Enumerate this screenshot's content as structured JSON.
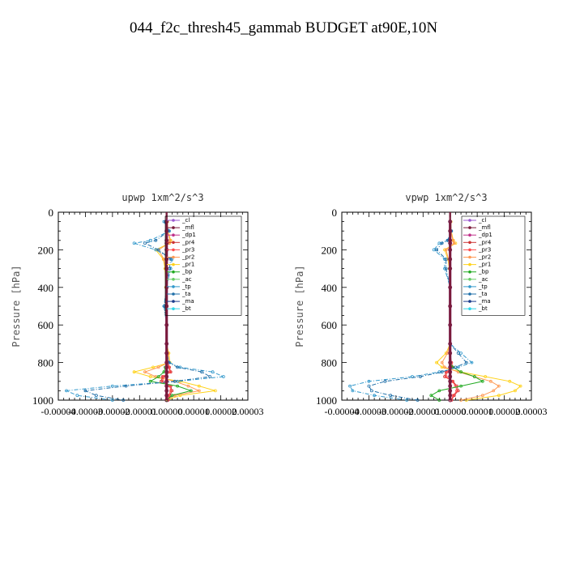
{
  "title": "044_f2c_thresh45_gammab  BUDGET at90E,10N",
  "legend_entries": [
    {
      "name": "_cl",
      "color": "#9b59d0"
    },
    {
      "name": "_mfl",
      "color": "#7a1a3a"
    },
    {
      "name": "_dp1",
      "color": "#c0328a"
    },
    {
      "name": "_pr4",
      "color": "#cc3333"
    },
    {
      "name": "_pr3",
      "color": "#ff4d4d"
    },
    {
      "name": "_pr2",
      "color": "#ff9a55"
    },
    {
      "name": "_pr1",
      "color": "#ffd21a"
    },
    {
      "name": "_bp",
      "color": "#22aa22"
    },
    {
      "name": "_ac",
      "color": "#66cc66"
    },
    {
      "name": "_tp",
      "color": "#3399cc"
    },
    {
      "name": "_ta",
      "color": "#1f6fa8"
    },
    {
      "name": "_ma",
      "color": "#1b3c8c"
    },
    {
      "name": "_bt",
      "color": "#33d6e8"
    }
  ],
  "chart_data": [
    {
      "type": "line",
      "title": "upwp  1xm^2/s^3",
      "ylabel": "Pressure [hPa]",
      "xlabel": "",
      "xlim": [
        -4e-05,
        3e-05
      ],
      "ylim": [
        1000,
        0
      ],
      "y_ticks": [
        0,
        200,
        400,
        600,
        800,
        1000
      ],
      "x_ticks": [
        "-0.00004",
        "-0.00003",
        "-0.00002",
        "-0.00001",
        "0.00000",
        "0.00001",
        "0.00002",
        "0.00003"
      ],
      "pressure": [
        50,
        100,
        150,
        165,
        200,
        250,
        300,
        400,
        500,
        600,
        700,
        750,
        800,
        825,
        850,
        875,
        900,
        925,
        950,
        975,
        1000
      ],
      "series": [
        {
          "name": "_pr1",
          "values": [
            3e-07,
            5e-07,
            1.5e-06,
            1e-06,
            -4e-06,
            -1.2e-06,
            -6e-07,
            -3e-07,
            0,
            0,
            0,
            8e-07,
            1.2e-06,
            -5e-06,
            -1.2e-05,
            -6e-06,
            5e-06,
            1.2e-05,
            1.8e-05,
            5e-06,
            0
          ]
        },
        {
          "name": "_pr2",
          "values": [
            0,
            4e-07,
            1.2e-06,
            8e-07,
            -3e-06,
            -1e-06,
            -4e-07,
            0,
            0,
            0,
            0,
            5e-07,
            8e-07,
            -3e-06,
            -8e-06,
            -4e-06,
            3e-06,
            8e-06,
            1.2e-05,
            3e-06,
            0
          ]
        },
        {
          "name": "_pr4",
          "values": [
            0,
            0,
            0,
            0,
            0,
            0,
            0,
            0,
            0,
            0,
            0,
            0,
            5e-07,
            1e-06,
            1.5e-06,
            -1.5e-06,
            -2e-06,
            1.5e-06,
            2e-06,
            1.2e-06,
            5e-07
          ]
        },
        {
          "name": "_pr3",
          "values": [
            0,
            0,
            0,
            0,
            0,
            0,
            0,
            0,
            0,
            0,
            0,
            0,
            4e-07,
            8e-07,
            1.2e-06,
            -1.2e-06,
            -1.5e-06,
            1.2e-06,
            1.5e-06,
            8e-07,
            4e-07
          ]
        },
        {
          "name": "_bp",
          "values": [
            0,
            0,
            0,
            0,
            0,
            0,
            0,
            0,
            0,
            0,
            0,
            0,
            0,
            -5e-07,
            -1e-06,
            -3e-06,
            -6e-06,
            4e-06,
            9e-06,
            2e-06,
            0
          ]
        },
        {
          "name": "_tp",
          "values": [
            -1e-06,
            1e-06,
            -6e-06,
            -1.2e-05,
            -4e-06,
            2e-06,
            1.5e-06,
            0,
            -1e-06,
            0,
            0,
            0,
            1e-06,
            5e-06,
            1.7e-05,
            2.1e-05,
            4e-06,
            -2e-05,
            -3.7e-05,
            -3.3e-05,
            -2e-05
          ]
        },
        {
          "name": "_ta",
          "values": [
            -5e-07,
            8e-07,
            -4e-06,
            -8e-06,
            -3e-06,
            1.5e-06,
            1e-06,
            0,
            -8e-07,
            0,
            0,
            0,
            8e-07,
            4e-06,
            1.3e-05,
            1.6e-05,
            3e-06,
            -1.5e-05,
            -3e-05,
            -2.6e-05,
            -1.6e-05
          ]
        },
        {
          "name": "_cl",
          "values": [
            0,
            0,
            0,
            0,
            0,
            0,
            0,
            0,
            0,
            0,
            0,
            0,
            0,
            0,
            0,
            0,
            0,
            0,
            0,
            0,
            0
          ]
        },
        {
          "name": "_mfl",
          "values": [
            0,
            0,
            0,
            0,
            0,
            0,
            0,
            0,
            0,
            0,
            0,
            0,
            0,
            0,
            0,
            0,
            0,
            0,
            0,
            0,
            0
          ]
        }
      ]
    },
    {
      "type": "line",
      "title": "vpwp  1xm^2/s^3",
      "ylabel": "Pressure [hPa]",
      "xlabel": "",
      "xlim": [
        -4e-05,
        3e-05
      ],
      "ylim": [
        1000,
        0
      ],
      "y_ticks": [
        0,
        200,
        400,
        600,
        800,
        1000
      ],
      "x_ticks": [
        "-0.00004",
        "-0.00003",
        "-0.00002",
        "-0.00001",
        "0.00000",
        "0.00001",
        "0.00002",
        "0.00003"
      ],
      "pressure": [
        50,
        100,
        150,
        165,
        200,
        250,
        300,
        400,
        500,
        600,
        700,
        750,
        800,
        825,
        850,
        875,
        900,
        925,
        950,
        975,
        1000
      ],
      "series": [
        {
          "name": "_pr1",
          "values": [
            3e-07,
            4e-07,
            1.2e-06,
            2e-06,
            -2e-06,
            -8e-07,
            -3e-07,
            0,
            0,
            0,
            0,
            -1.5e-06,
            -5e-06,
            -3e-06,
            4e-06,
            1.3e-05,
            2.2e-05,
            2.6e-05,
            2.4e-05,
            1.8e-05,
            6e-06
          ]
        },
        {
          "name": "_pr2",
          "values": [
            0,
            3e-07,
            1e-06,
            1.5e-06,
            -1.5e-06,
            -6e-07,
            -2e-07,
            0,
            0,
            0,
            0,
            -1e-06,
            -3e-06,
            -2e-06,
            3e-06,
            9e-06,
            1.5e-05,
            1.8e-05,
            1.6e-05,
            1.2e-05,
            4e-06
          ]
        },
        {
          "name": "_pr4",
          "values": [
            0,
            0,
            0,
            0,
            0,
            0,
            0,
            0,
            0,
            0,
            0,
            0,
            5e-07,
            1e-06,
            -1.5e-06,
            -2e-06,
            1e-06,
            2.5e-06,
            3e-06,
            1.5e-06,
            5e-07
          ]
        },
        {
          "name": "_pr3",
          "values": [
            0,
            0,
            0,
            0,
            0,
            0,
            0,
            0,
            0,
            0,
            0,
            0,
            4e-07,
            8e-07,
            -1.2e-06,
            -1.5e-06,
            8e-07,
            2e-06,
            2.5e-06,
            1.2e-06,
            4e-07
          ]
        },
        {
          "name": "_bp",
          "values": [
            0,
            0,
            0,
            0,
            0,
            0,
            0,
            0,
            0,
            0,
            0,
            0,
            0,
            1e-06,
            4e-06,
            9e-06,
            1.2e-05,
            4e-06,
            -4e-06,
            -7e-06,
            -4e-06
          ]
        },
        {
          "name": "_tp",
          "values": [
            0,
            5e-07,
            -1e-06,
            -4e-06,
            -6e-06,
            -2e-06,
            -2e-06,
            0,
            0,
            0,
            0,
            4e-06,
            8e-06,
            3e-06,
            -4e-06,
            -1.4e-05,
            -3e-05,
            -3.7e-05,
            -3.6e-05,
            -2.8e-05,
            -1.6e-05
          ]
        },
        {
          "name": "_ta",
          "values": [
            0,
            4e-07,
            -8e-07,
            -3e-06,
            -5e-06,
            -1.5e-06,
            -1.5e-06,
            0,
            0,
            0,
            0,
            3e-06,
            6e-06,
            2e-06,
            -3e-06,
            -1.1e-05,
            -2.4e-05,
            -3e-05,
            -2.9e-05,
            -2.2e-05,
            -1.2e-05
          ]
        },
        {
          "name": "_cl",
          "values": [
            0,
            0,
            0,
            0,
            0,
            0,
            0,
            0,
            0,
            0,
            0,
            0,
            0,
            0,
            0,
            0,
            0,
            0,
            0,
            0,
            0
          ]
        },
        {
          "name": "_mfl",
          "values": [
            0,
            0,
            0,
            0,
            0,
            0,
            0,
            0,
            0,
            0,
            0,
            0,
            0,
            0,
            0,
            0,
            0,
            0,
            0,
            0,
            0
          ]
        }
      ]
    }
  ]
}
